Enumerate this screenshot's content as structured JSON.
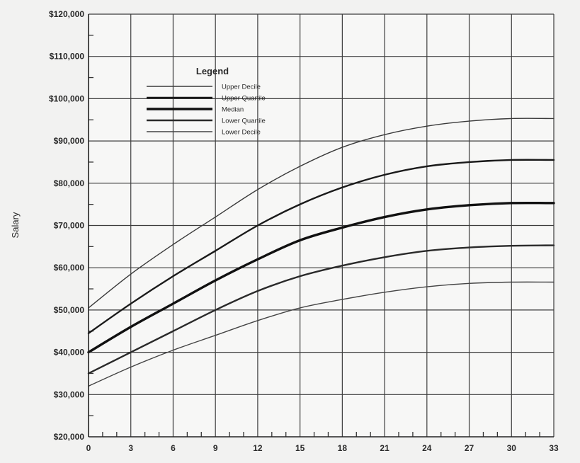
{
  "chart_data": {
    "type": "line",
    "title": "",
    "xlabel": "",
    "ylabel": "Salary",
    "xlim": [
      0,
      33
    ],
    "ylim": [
      20000,
      120000
    ],
    "x_ticks": [
      0,
      3,
      6,
      9,
      12,
      15,
      18,
      21,
      24,
      27,
      30,
      33
    ],
    "x_tick_labels": [
      "0",
      "3",
      "6",
      "9",
      "12",
      "15",
      "18",
      "21",
      "24",
      "27",
      "30",
      "33"
    ],
    "y_ticks": [
      20000,
      30000,
      40000,
      50000,
      60000,
      70000,
      80000,
      90000,
      100000,
      110000,
      120000
    ],
    "y_tick_labels": [
      "$20,000",
      "$30,000",
      "$40,000",
      "$50,000",
      "$60,000",
      "$70,000",
      "$80,000",
      "$90,000",
      "$100,000",
      "$110,000",
      "$120,000"
    ],
    "grid": true,
    "legend": {
      "title": "Legend",
      "position": "top-left"
    },
    "x": [
      0,
      3,
      6,
      9,
      12,
      15,
      18,
      21,
      24,
      27,
      30,
      33
    ],
    "series": [
      {
        "name": "Upper Decile",
        "color": "#3a3a3a",
        "weight": "thin",
        "values": [
          50500,
          58500,
          65500,
          72000,
          78500,
          84000,
          88500,
          91500,
          93500,
          94700,
          95300,
          95300
        ]
      },
      {
        "name": "Upper Quartile",
        "color": "#1a1a1a",
        "weight": "medium",
        "values": [
          44500,
          51500,
          58000,
          64000,
          70000,
          75000,
          79000,
          82000,
          84000,
          85000,
          85500,
          85500
        ]
      },
      {
        "name": "Median",
        "color": "#111111",
        "weight": "thick",
        "values": [
          40000,
          46000,
          51500,
          57000,
          62000,
          66500,
          69500,
          72000,
          73800,
          74800,
          75300,
          75300
        ]
      },
      {
        "name": "Lower Quartile",
        "color": "#2a2a2a",
        "weight": "medium",
        "values": [
          35000,
          40000,
          45000,
          50000,
          54500,
          58000,
          60500,
          62500,
          64000,
          64800,
          65200,
          65300
        ]
      },
      {
        "name": "Lower Decile",
        "color": "#444444",
        "weight": "thin",
        "values": [
          32000,
          36500,
          40500,
          44000,
          47500,
          50500,
          52500,
          54200,
          55500,
          56300,
          56600,
          56600
        ]
      }
    ]
  }
}
